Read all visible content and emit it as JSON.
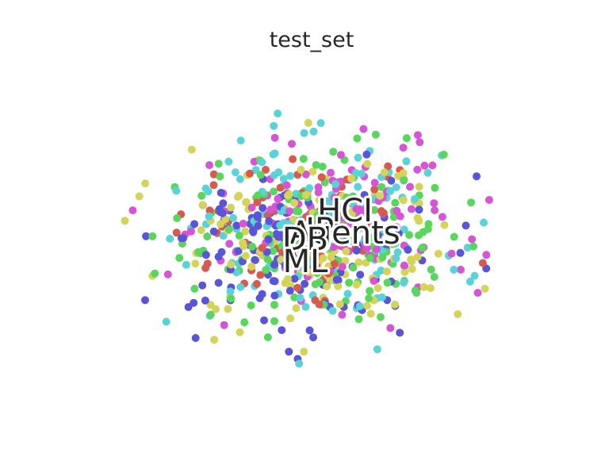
{
  "chart_data": {
    "type": "scatter",
    "title": "test_set",
    "xlabel": "",
    "ylabel": "",
    "xlim": [
      -60,
      60
    ],
    "ylim": [
      -50,
      50
    ],
    "grid": false,
    "axes_visible": false,
    "legend": "none",
    "series": [
      {
        "color": "#d65a50",
        "count": 70,
        "center": [
          -3,
          2
        ],
        "spread": [
          22,
          18
        ]
      },
      {
        "color": "#d4d45a",
        "count": 150,
        "center": [
          2,
          1
        ],
        "spread": [
          23,
          19
        ]
      },
      {
        "color": "#5ad65f",
        "count": 150,
        "center": [
          1,
          0
        ],
        "spread": [
          22,
          18
        ]
      },
      {
        "color": "#5ad2d8",
        "count": 150,
        "center": [
          2,
          3
        ],
        "spread": [
          24,
          20
        ]
      },
      {
        "color": "#5a55d6",
        "count": 150,
        "center": [
          -4,
          -5
        ],
        "spread": [
          20,
          17
        ]
      },
      {
        "color": "#d655d4",
        "count": 130,
        "center": [
          4,
          4
        ],
        "spread": [
          22,
          18
        ]
      }
    ],
    "annotations": [
      {
        "text": "HCI",
        "x": 8,
        "y": 8
      },
      {
        "text": "IR",
        "x": 2,
        "y": 2
      },
      {
        "text": "Agents",
        "x": 8,
        "y": 1
      },
      {
        "text": "DB",
        "x": -2,
        "y": -1
      },
      {
        "text": "ML",
        "x": -2,
        "y": -8
      }
    ]
  }
}
